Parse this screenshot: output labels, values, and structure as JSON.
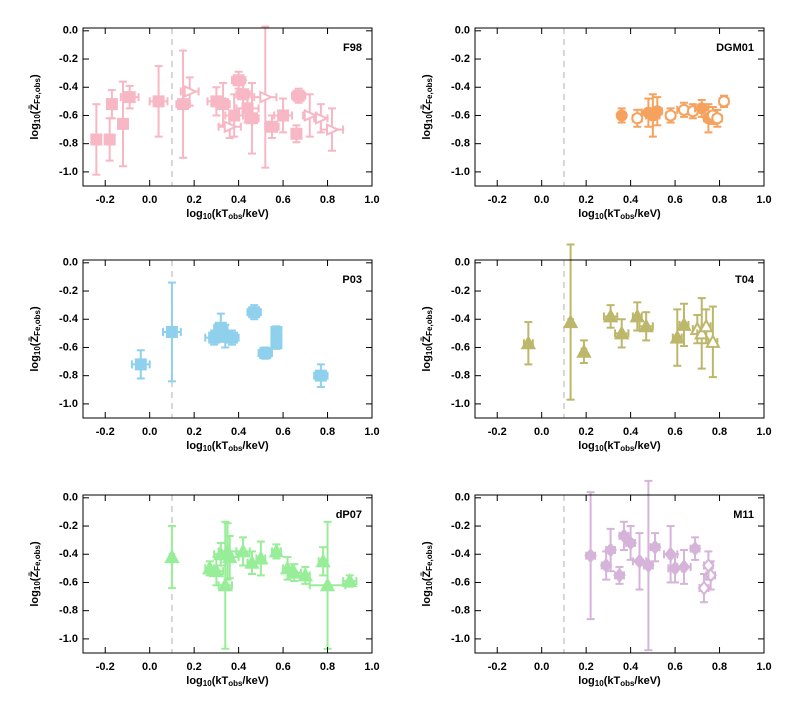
{
  "chart_data": [
    {
      "type": "scatter",
      "label": "F98",
      "color": "#f7b7c4",
      "marker": "square",
      "open_marker": "triangle-right",
      "refline_x": 0.1,
      "xlabel": [
        "log",
        "10",
        "(kT",
        "obs",
        "/keV)"
      ],
      "ylabel": [
        "log",
        "10",
        "(Z̄",
        "Fe,obs",
        ")"
      ],
      "xlim": [
        -0.3,
        1.0
      ],
      "ylim": [
        -1.1,
        0.02
      ],
      "xticks": [
        -0.2,
        {
          "value": 0,
          "label": "0.0"
        },
        0.2,
        0.4,
        0.6,
        0.8,
        {
          "value": 1,
          "label": "1.0"
        }
      ],
      "yticks": [
        {
          "value": 0,
          "label": "0.0"
        },
        -0.2,
        -0.4,
        -0.6,
        -0.8,
        {
          "value": -1,
          "label": "-1.0"
        }
      ],
      "x": [
        -0.24,
        -0.18,
        -0.17,
        -0.12,
        -0.09,
        0.04,
        0.15,
        0.18,
        0.3,
        0.33,
        0.36,
        0.38,
        0.4,
        0.42,
        0.44,
        0.46,
        0.52,
        0.55,
        0.6,
        0.66,
        0.67,
        0.72,
        0.77,
        0.82
      ],
      "values": [
        -0.77,
        -0.77,
        -0.52,
        -0.66,
        -0.47,
        -0.5,
        -0.52,
        -0.43,
        -0.5,
        -0.52,
        -0.68,
        -0.6,
        -0.35,
        -0.45,
        -0.55,
        -0.62,
        -0.47,
        -0.68,
        -0.6,
        -0.73,
        -0.46,
        -0.6,
        -0.62,
        -0.7
      ],
      "xerr": [
        0.02,
        0.02,
        0.02,
        0.02,
        0.04,
        0.04,
        0.03,
        0.04,
        0.04,
        0.03,
        0.05,
        0.04,
        0.03,
        0.03,
        0.05,
        0.03,
        0.05,
        0.03,
        0.04,
        0.02,
        0.03,
        0.03,
        0.03,
        0.05
      ],
      "yerr": [
        0.25,
        0.15,
        0.1,
        0.3,
        0.08,
        0.25,
        0.38,
        0.1,
        0.1,
        0.15,
        0.08,
        0.15,
        0.06,
        0.1,
        0.1,
        0.25,
        0.5,
        0.08,
        0.12,
        0.06,
        0.05,
        0.15,
        0.1,
        0.15
      ],
      "filled": [
        true,
        true,
        true,
        true,
        true,
        true,
        true,
        false,
        true,
        true,
        false,
        true,
        true,
        true,
        true,
        true,
        false,
        true,
        true,
        true,
        true,
        false,
        false,
        false
      ]
    },
    {
      "type": "scatter",
      "label": "DGM01",
      "color": "#f5a25e",
      "marker": "circle",
      "open_marker": "circle",
      "refline_x": 0.1,
      "xlabel": [
        "log",
        "10",
        "(kT",
        "obs",
        "/keV)"
      ],
      "ylabel": [
        "log",
        "10",
        "(Z̄",
        "Fe,obs",
        ")"
      ],
      "xlim": [
        -0.3,
        1.0
      ],
      "ylim": [
        -1.1,
        0.02
      ],
      "xticks": [
        -0.2,
        {
          "value": 0,
          "label": "0.0"
        },
        0.2,
        0.4,
        0.6,
        0.8,
        {
          "value": 1,
          "label": "1.0"
        }
      ],
      "yticks": [
        {
          "value": 0,
          "label": "0.0"
        },
        -0.2,
        -0.4,
        -0.6,
        -0.8,
        {
          "value": -1,
          "label": "-1.0"
        }
      ],
      "x": [
        0.36,
        0.43,
        0.48,
        0.5,
        0.52,
        0.58,
        0.64,
        0.68,
        0.72,
        0.75,
        0.77,
        0.79,
        0.82
      ],
      "values": [
        -0.6,
        -0.62,
        -0.58,
        -0.6,
        -0.57,
        -0.6,
        -0.56,
        -0.57,
        -0.55,
        -0.62,
        -0.6,
        -0.62,
        -0.5
      ],
      "xerr": [
        0.01,
        0.02,
        0.03,
        0.03,
        0.02,
        0.02,
        0.03,
        0.02,
        0.03,
        0.02,
        0.02,
        0.02,
        0.02
      ],
      "yerr": [
        0.05,
        0.06,
        0.1,
        0.15,
        0.1,
        0.05,
        0.05,
        0.05,
        0.06,
        0.1,
        0.06,
        0.06,
        0.04
      ],
      "filled": [
        true,
        false,
        true,
        true,
        true,
        false,
        false,
        false,
        true,
        true,
        false,
        false,
        false
      ]
    },
    {
      "type": "scatter",
      "label": "P03",
      "color": "#8fd0ec",
      "marker": "square",
      "open_marker": "square",
      "refline_x": 0.1,
      "xlabel": [
        "log",
        "10",
        "(kT",
        "obs",
        "/keV)"
      ],
      "ylabel": [
        "log",
        "10",
        "(Z̄",
        "Fe,obs",
        ")"
      ],
      "xlim": [
        -0.3,
        1.0
      ],
      "ylim": [
        -1.1,
        0.02
      ],
      "xticks": [
        -0.2,
        {
          "value": 0,
          "label": "0.0"
        },
        0.2,
        0.4,
        0.6,
        0.8,
        {
          "value": 1,
          "label": "1.0"
        }
      ],
      "yticks": [
        {
          "value": 0,
          "label": "0.0"
        },
        -0.2,
        -0.4,
        -0.6,
        -0.8,
        {
          "value": -1,
          "label": "-1.0"
        }
      ],
      "x": [
        -0.04,
        0.1,
        0.29,
        0.32,
        0.34,
        0.37,
        0.47,
        0.52,
        0.57,
        0.57,
        0.77
      ],
      "values": [
        -0.72,
        -0.49,
        -0.53,
        -0.46,
        -0.52,
        -0.53,
        -0.35,
        -0.64,
        -0.49,
        -0.57,
        -0.8
      ],
      "xerr": [
        0.04,
        0.04,
        0.04,
        0.03,
        0.03,
        0.03,
        0.03,
        0.03,
        0.02,
        0.02,
        0.03
      ],
      "yerr": [
        0.1,
        0.35,
        0.05,
        0.1,
        0.08,
        0.05,
        0.05,
        0.04,
        0.04,
        0.04,
        0.08
      ],
      "filled": [
        true,
        true,
        true,
        true,
        true,
        true,
        true,
        true,
        true,
        true,
        true
      ]
    },
    {
      "type": "scatter",
      "label": "T04",
      "color": "#bdb76b",
      "marker": "triangle",
      "open_marker": "triangle",
      "refline_x": 0.1,
      "xlabel": [
        "log",
        "10",
        "(kT",
        "obs",
        "/keV)"
      ],
      "ylabel": [
        "log",
        "10",
        "(Z̄",
        "Fe,obs",
        ")"
      ],
      "xlim": [
        -0.3,
        1.0
      ],
      "ylim": [
        -1.1,
        0.02
      ],
      "xticks": [
        -0.2,
        {
          "value": 0,
          "label": "0.0"
        },
        0.2,
        0.4,
        0.6,
        0.8,
        {
          "value": 1,
          "label": "1.0"
        }
      ],
      "yticks": [
        {
          "value": 0,
          "label": "0.0"
        },
        -0.2,
        -0.4,
        -0.6,
        -0.8,
        {
          "value": -1,
          "label": "-1.0"
        }
      ],
      "x": [
        -0.06,
        0.13,
        0.19,
        0.31,
        0.36,
        0.43,
        0.47,
        0.61,
        0.64,
        0.7,
        0.72,
        0.74,
        0.77
      ],
      "values": [
        -0.57,
        -0.42,
        -0.63,
        -0.38,
        -0.5,
        -0.38,
        -0.45,
        -0.53,
        -0.44,
        -0.47,
        -0.5,
        -0.45,
        -0.56
      ],
      "xerr": [
        0.02,
        0.01,
        0.01,
        0.03,
        0.03,
        0.02,
        0.03,
        0.02,
        0.02,
        0.02,
        0.02,
        0.02,
        0.02
      ],
      "yerr": [
        0.15,
        0.55,
        0.08,
        0.08,
        0.1,
        0.1,
        0.1,
        0.2,
        0.15,
        0.1,
        0.25,
        0.12,
        0.25
      ],
      "filled": [
        true,
        true,
        true,
        true,
        true,
        true,
        true,
        true,
        true,
        false,
        false,
        false,
        false
      ]
    },
    {
      "type": "scatter",
      "label": "dP07",
      "color": "#98ee98",
      "marker": "triangle",
      "open_marker": "triangle",
      "refline_x": 0.1,
      "xlabel": [
        "log",
        "10",
        "(kT",
        "obs",
        "/keV)"
      ],
      "ylabel": [
        "log",
        "10",
        "(Z̄",
        "Fe,obs",
        ")"
      ],
      "xlim": [
        -0.3,
        1.0
      ],
      "ylim": [
        -1.1,
        0.02
      ],
      "xticks": [
        -0.2,
        {
          "value": 0,
          "label": "0.0"
        },
        0.2,
        0.4,
        0.6,
        0.8,
        {
          "value": 1,
          "label": "1.0"
        }
      ],
      "yticks": [
        {
          "value": 0,
          "label": "0.0"
        },
        -0.2,
        -0.4,
        -0.6,
        -0.8,
        {
          "value": -1,
          "label": "-1.0"
        }
      ],
      "x": [
        0.1,
        0.27,
        0.3,
        0.32,
        0.34,
        0.35,
        0.36,
        0.42,
        0.46,
        0.5,
        0.57,
        0.62,
        0.65,
        0.7,
        0.78,
        0.8,
        0.9
      ],
      "values": [
        -0.42,
        -0.5,
        -0.52,
        -0.4,
        -0.62,
        -0.38,
        -0.42,
        -0.38,
        -0.46,
        -0.43,
        -0.38,
        -0.5,
        -0.53,
        -0.55,
        -0.45,
        -0.62,
        -0.59
      ],
      "xerr": [
        0.01,
        0.02,
        0.03,
        0.03,
        0.03,
        0.04,
        0.04,
        0.03,
        0.02,
        0.02,
        0.02,
        0.02,
        0.03,
        0.02,
        0.02,
        0.08,
        0.03
      ],
      "yerr": [
        0.22,
        0.05,
        0.1,
        0.08,
        0.45,
        0.2,
        0.15,
        0.1,
        0.08,
        0.12,
        0.05,
        0.08,
        0.06,
        0.06,
        0.1,
        0.45,
        0.04
      ],
      "filled": [
        true,
        true,
        true,
        true,
        true,
        true,
        true,
        true,
        true,
        true,
        true,
        true,
        true,
        true,
        true,
        true,
        true
      ]
    },
    {
      "type": "scatter",
      "label": "M11",
      "color": "#d6b4d9",
      "marker": "diamond",
      "open_marker": "diamond",
      "refline_x": 0.1,
      "xlabel": [
        "log",
        "10",
        "(kT",
        "obs",
        "/keV)"
      ],
      "ylabel": [
        "log",
        "10",
        "(Z̄",
        "Fe,obs",
        ")"
      ],
      "xlim": [
        -0.3,
        1.0
      ],
      "ylim": [
        -1.1,
        0.02
      ],
      "xticks": [
        -0.2,
        {
          "value": 0,
          "label": "0.0"
        },
        0.2,
        0.4,
        0.6,
        0.8,
        {
          "value": 1,
          "label": "1.0"
        }
      ],
      "yticks": [
        {
          "value": 0,
          "label": "0.0"
        },
        -0.2,
        -0.4,
        -0.6,
        -0.8,
        {
          "value": -1,
          "label": "-1.0"
        }
      ],
      "x": [
        0.22,
        0.29,
        0.31,
        0.35,
        0.37,
        0.4,
        0.44,
        0.48,
        0.51,
        0.58,
        0.6,
        0.64,
        0.69,
        0.73,
        0.76,
        0.75
      ],
      "values": [
        -0.41,
        -0.48,
        -0.37,
        -0.55,
        -0.27,
        -0.32,
        -0.45,
        -0.48,
        -0.35,
        -0.4,
        -0.5,
        -0.49,
        -0.36,
        -0.64,
        -0.55,
        -0.48
      ],
      "xerr": [
        0.02,
        0.02,
        0.02,
        0.02,
        0.02,
        0.02,
        0.03,
        0.02,
        0.02,
        0.03,
        0.03,
        0.03,
        0.02,
        0.02,
        0.02,
        0.02
      ],
      "yerr": [
        0.45,
        0.1,
        0.15,
        0.06,
        0.1,
        0.12,
        0.2,
        0.6,
        0.1,
        0.2,
        0.1,
        0.12,
        0.08,
        0.1,
        0.1,
        0.1
      ],
      "filled": [
        true,
        true,
        true,
        true,
        true,
        true,
        true,
        true,
        true,
        true,
        true,
        true,
        true,
        false,
        false,
        false
      ]
    }
  ]
}
